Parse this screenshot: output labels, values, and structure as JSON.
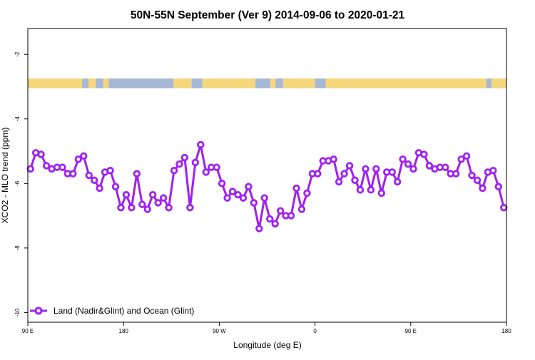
{
  "chart_data": {
    "type": "line",
    "title": "50N-55N September (Ver 9)   2014-09-06 to 2020-01-21",
    "xlabel": "Longitude (deg E)",
    "ylabel": "XCO2 - MLO trend (ppm)",
    "xlim": [
      90,
      540
    ],
    "ylim": [
      -10.3,
      -1.2
    ],
    "x_ticks": [
      {
        "value": 90,
        "label": "90 E"
      },
      {
        "value": 180,
        "label": "180"
      },
      {
        "value": 270,
        "label": "90 W"
      },
      {
        "value": 360,
        "label": "0"
      },
      {
        "value": 450,
        "label": "90 E"
      },
      {
        "value": 540,
        "label": "180"
      }
    ],
    "y_ticks": [
      {
        "value": -2,
        "label": "-2"
      },
      {
        "value": -4,
        "label": "-4"
      },
      {
        "value": -6,
        "label": "-6"
      },
      {
        "value": -8,
        "label": "-8"
      },
      {
        "value": -10,
        "label": "-10"
      }
    ],
    "surface_band": {
      "y_range": [
        -2.75,
        -3.05
      ],
      "land_color": "#f5d67a",
      "ocean_color": "#a5b8d6",
      "segments": [
        {
          "start": 90,
          "end": 141,
          "type": "land"
        },
        {
          "start": 141,
          "end": 147,
          "type": "ocean"
        },
        {
          "start": 147,
          "end": 154,
          "type": "land"
        },
        {
          "start": 154,
          "end": 161,
          "type": "ocean"
        },
        {
          "start": 161,
          "end": 166,
          "type": "land"
        },
        {
          "start": 166,
          "end": 227,
          "type": "ocean"
        },
        {
          "start": 227,
          "end": 244,
          "type": "land"
        },
        {
          "start": 244,
          "end": 254,
          "type": "ocean"
        },
        {
          "start": 254,
          "end": 304,
          "type": "land"
        },
        {
          "start": 304,
          "end": 318,
          "type": "ocean"
        },
        {
          "start": 318,
          "end": 323,
          "type": "land"
        },
        {
          "start": 323,
          "end": 330,
          "type": "ocean"
        },
        {
          "start": 330,
          "end": 360,
          "type": "land"
        },
        {
          "start": 360,
          "end": 370,
          "type": "ocean"
        },
        {
          "start": 370,
          "end": 521,
          "type": "land"
        },
        {
          "start": 521,
          "end": 526,
          "type": "ocean"
        },
        {
          "start": 526,
          "end": 540,
          "type": "land"
        }
      ]
    },
    "series": [
      {
        "name": "Land (Nadir&Glint) and Ocean (Glint)",
        "color": "#a020f0",
        "x": [
          92.5,
          97.5,
          102.5,
          107.5,
          112.5,
          117.5,
          122.5,
          127.5,
          132.5,
          137.5,
          142.5,
          147.5,
          152.5,
          157.5,
          162.5,
          167.5,
          172.5,
          177.5,
          182.5,
          187.5,
          192.5,
          197.5,
          202.5,
          207.5,
          212.5,
          217.5,
          222.5,
          227.5,
          232.5,
          237.5,
          242.5,
          247.5,
          252.5,
          257.5,
          262.5,
          267.5,
          272.5,
          277.5,
          282.5,
          287.5,
          292.5,
          297.5,
          302.5,
          307.5,
          312.5,
          317.5,
          322.5,
          327.5,
          332.5,
          337.5,
          342.5,
          347.5,
          352.5,
          357.5,
          362.5,
          367.5,
          372.5,
          377.5,
          382.5,
          387.5,
          392.5,
          397.5,
          402.5,
          407.5,
          412.5,
          417.5,
          422.5,
          427.5,
          432.5,
          437.5,
          442.5,
          447.5,
          452.5,
          457.5,
          462.5,
          467.5,
          472.5,
          477.5,
          482.5,
          487.5,
          492.5,
          497.5,
          502.5,
          507.5,
          512.5,
          517.5,
          522.5,
          527.5,
          532.5,
          537.5
        ],
        "y": [
          -5.55,
          -5.05,
          -5.1,
          -5.45,
          -5.55,
          -5.5,
          -5.5,
          -5.7,
          -5.7,
          -5.25,
          -5.15,
          -5.75,
          -5.9,
          -6.15,
          -5.65,
          -5.6,
          -6.1,
          -6.75,
          -6.35,
          -6.75,
          -5.7,
          -6.65,
          -6.8,
          -6.35,
          -6.6,
          -6.45,
          -6.75,
          -5.6,
          -5.4,
          -5.2,
          -6.75,
          -5.35,
          -4.8,
          -5.65,
          -5.5,
          -5.5,
          -6.0,
          -6.45,
          -6.25,
          -6.35,
          -6.45,
          -6.1,
          -6.6,
          -7.4,
          -6.45,
          -7.1,
          -7.25,
          -6.85,
          -7.0,
          -7.0,
          -6.15,
          -6.8,
          -6.3,
          -5.7,
          -5.7,
          -5.3,
          -5.3,
          -5.25,
          -5.95,
          -5.7,
          -5.45,
          -5.9,
          -6.2,
          -5.55,
          -6.2,
          -5.55,
          -6.3,
          -5.65,
          -5.65,
          -5.95,
          -5.25,
          -5.4,
          -5.55,
          -5.05,
          -5.1,
          -5.45,
          -5.55,
          -5.5,
          -5.5,
          -5.7,
          -5.7,
          -5.25,
          -5.15,
          -5.75,
          -5.9,
          -6.15,
          -5.65,
          -5.6,
          -6.1,
          -6.75
        ]
      }
    ],
    "legend_position": "bottom-left"
  }
}
